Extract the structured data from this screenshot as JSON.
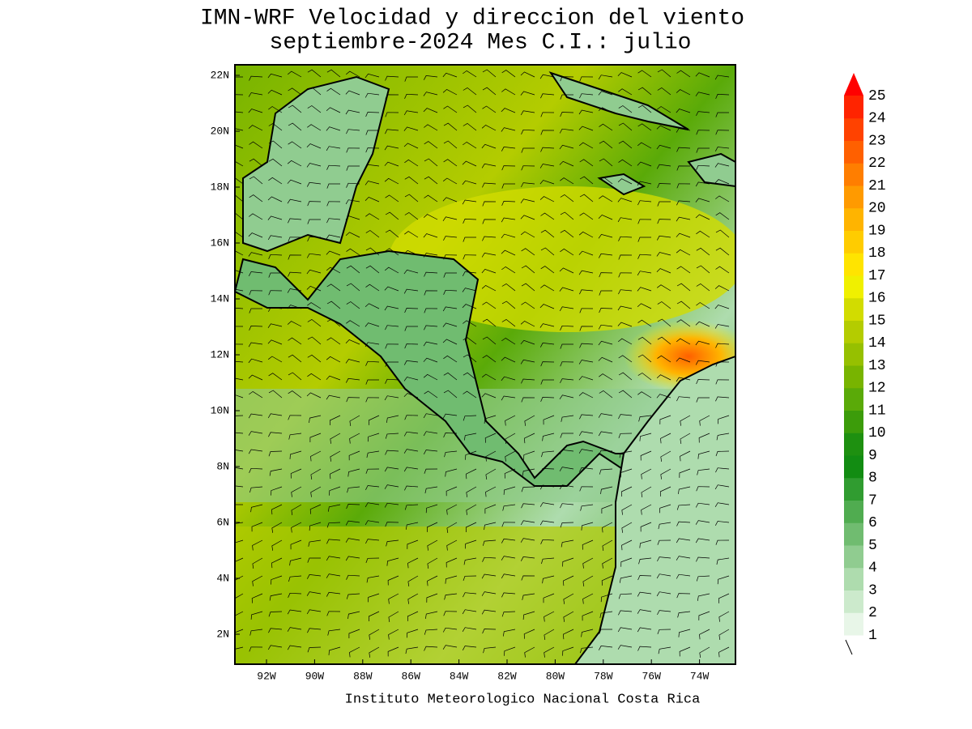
{
  "header": {
    "title": "IMN-WRF Velocidad y direccion del viento",
    "subtitle": "septiembre-2024 Mes C.I.: julio"
  },
  "map": {
    "lat_labels": [
      "22N",
      "20N",
      "18N",
      "16N",
      "14N",
      "12N",
      "10N",
      "8N",
      "6N",
      "4N",
      "2N"
    ],
    "lon_labels": [
      "92W",
      "90W",
      "88W",
      "86W",
      "84W",
      "82W",
      "80W",
      "78W",
      "76W",
      "74W"
    ]
  },
  "colorbar": {
    "levels": [
      1,
      2,
      3,
      4,
      5,
      6,
      7,
      8,
      9,
      10,
      11,
      12,
      13,
      14,
      15,
      16,
      17,
      18,
      19,
      20,
      21,
      22,
      23,
      24,
      25
    ],
    "colors": [
      "#e8f6e8",
      "#cceacc",
      "#aedcae",
      "#90cc90",
      "#70bc70",
      "#50ac50",
      "#309c30",
      "#128c12",
      "#1e9010",
      "#3c9c0a",
      "#5aaa08",
      "#78b400",
      "#96c000",
      "#b4cc00",
      "#d2dc00",
      "#f0f000",
      "#ffe400",
      "#ffcc00",
      "#ffb400",
      "#ff9a00",
      "#ff7e00",
      "#ff6000",
      "#ff4200",
      "#ff2400"
    ],
    "over_color": "#ff0000"
  },
  "footer": {
    "credit": "Instituto Meteorologico Nacional Costa Rica"
  }
}
